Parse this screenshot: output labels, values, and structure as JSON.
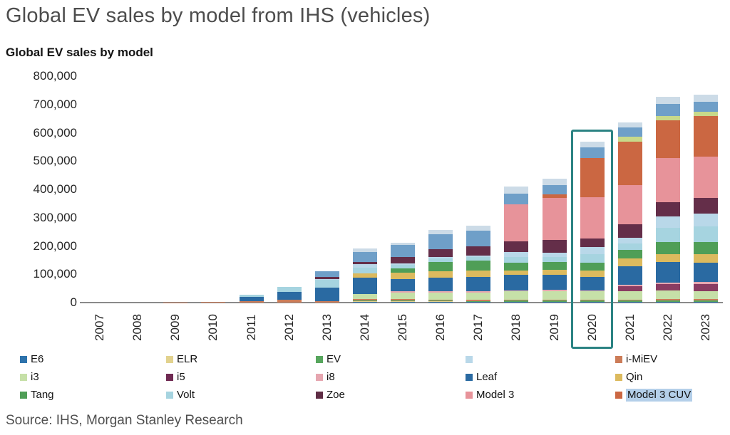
{
  "title": "Global EV sales by model from IHS (vehicles)",
  "source": "Source: IHS, Morgan Stanley Research",
  "legend_highlight_bg": "#b4cfe9",
  "legend_items": [
    {
      "label": "E6",
      "color": "#2e73ac",
      "highlighted": false
    },
    {
      "label": "ELR",
      "color": "#e2d28e",
      "highlighted": false
    },
    {
      "label": "EV",
      "color": "#57a65d",
      "highlighted": false
    },
    {
      "label": "",
      "color": "#b9d8e9",
      "highlighted": false
    },
    {
      "label": "i-MiEV",
      "color": "#cc7c58",
      "highlighted": false
    },
    {
      "label": "i3",
      "color": "#c6e0a8",
      "highlighted": false
    },
    {
      "label": "i5",
      "color": "#6f2a52",
      "highlighted": false
    },
    {
      "label": "i8",
      "color": "#e6a6b0",
      "highlighted": false
    },
    {
      "label": "Leaf",
      "color": "#2a6aa2",
      "highlighted": false
    },
    {
      "label": "Qin",
      "color": "#dcba5e",
      "highlighted": false
    },
    {
      "label": "Tang",
      "color": "#4f9e57",
      "highlighted": false
    },
    {
      "label": "Volt",
      "color": "#a6d4e0",
      "highlighted": false
    },
    {
      "label": "Zoe",
      "color": "#5f2d45",
      "highlighted": false
    },
    {
      "label": "Model 3",
      "color": "#e7939a",
      "highlighted": false
    },
    {
      "label": "Model 3 CUV",
      "color": "#cb6742",
      "highlighted": true
    }
  ],
  "chart_data": {
    "type": "bar",
    "stacked": true,
    "subtitle": "Global EV sales by model",
    "ylabel": "",
    "ylim": [
      0,
      800000
    ],
    "grid": false,
    "legend_position": "bottom",
    "highlight": {
      "year": "2020",
      "box_color": "#2b8383"
    },
    "y_ticks": [
      {
        "label": "800,000",
        "value": 800000
      },
      {
        "label": "700,000",
        "value": 700000
      },
      {
        "label": "600,000",
        "value": 600000
      },
      {
        "label": "500,000",
        "value": 500000
      },
      {
        "label": "400,000",
        "value": 400000
      },
      {
        "label": "300,000",
        "value": 300000
      },
      {
        "label": "200,000",
        "value": 200000
      },
      {
        "label": "100,000",
        "value": 100000
      },
      {
        "label": "0",
        "value": 0
      }
    ],
    "years": [
      "2007",
      "2008",
      "2009",
      "2010",
      "2011",
      "2012",
      "2013",
      "2014",
      "2015",
      "2016",
      "2017",
      "2018",
      "2019",
      "2020",
      "2021",
      "2022",
      "2023"
    ],
    "series": [
      {
        "name": "E6",
        "color": "#2e73ac",
        "values": [
          0,
          0,
          0,
          0,
          0,
          0,
          0,
          2000,
          3000,
          3000,
          3000,
          3000,
          3000,
          3000,
          3000,
          3000,
          3000
        ]
      },
      {
        "name": "ELR",
        "color": "#e2d28e",
        "values": [
          0,
          0,
          0,
          0,
          0,
          0,
          0,
          4000,
          2000,
          1000,
          0,
          0,
          0,
          0,
          0,
          0,
          0
        ]
      },
      {
        "name": "EV",
        "color": "#57a65d",
        "values": [
          0,
          0,
          0,
          0,
          0,
          0,
          0,
          2000,
          3000,
          3000,
          3000,
          4000,
          4000,
          4000,
          4000,
          5000,
          5000
        ]
      },
      {
        "name": "i-MiEV",
        "color": "#cc7c58",
        "values": [
          0,
          0,
          1000,
          3000,
          6000,
          10000,
          6000,
          5000,
          4000,
          3000,
          3000,
          4000,
          4000,
          4000,
          4000,
          4000,
          4000
        ]
      },
      {
        "name": "i3",
        "color": "#c6e0a8",
        "values": [
          0,
          0,
          0,
          0,
          0,
          0,
          0,
          16000,
          24000,
          25000,
          26000,
          28000,
          30000,
          28000,
          28000,
          30000,
          28000
        ]
      },
      {
        "name": "i5",
        "color": "#8a3c62",
        "values": [
          0,
          0,
          0,
          0,
          0,
          0,
          0,
          0,
          0,
          0,
          0,
          0,
          0,
          0,
          20000,
          24000,
          26000
        ]
      },
      {
        "name": "i8",
        "color": "#e6a6b0",
        "values": [
          0,
          0,
          0,
          0,
          0,
          0,
          0,
          0,
          4000,
          4000,
          4000,
          4000,
          5000,
          5000,
          5000,
          5000,
          6000
        ]
      },
      {
        "name": "Leaf",
        "color": "#2a6aa2",
        "values": [
          0,
          0,
          0,
          0,
          14000,
          27000,
          48000,
          58000,
          42000,
          50000,
          52000,
          55000,
          53000,
          46000,
          65000,
          72000,
          70000
        ]
      },
      {
        "name": "Qin",
        "color": "#dcba5e",
        "values": [
          0,
          0,
          0,
          0,
          0,
          0,
          0,
          16000,
          24000,
          22000,
          22000,
          16000,
          16000,
          22000,
          28000,
          28000,
          28000
        ]
      },
      {
        "name": "Tang",
        "color": "#4f9e57",
        "values": [
          0,
          0,
          0,
          0,
          0,
          0,
          0,
          0,
          14000,
          32000,
          35000,
          28000,
          28000,
          28000,
          28000,
          44000,
          44000
        ]
      },
      {
        "name": "Volt",
        "color": "#a6d4e0",
        "values": [
          0,
          0,
          0,
          0,
          8000,
          19000,
          26000,
          20000,
          14000,
          14000,
          13000,
          20000,
          18000,
          32000,
          25000,
          50000,
          55000
        ]
      },
      {
        "name": "",
        "color": "#b9d8e9",
        "values": [
          0,
          0,
          0,
          0,
          0,
          0,
          4000,
          12000,
          4000,
          4000,
          4000,
          16000,
          15000,
          23000,
          20000,
          40000,
          45000
        ]
      },
      {
        "name": "Zoe",
        "color": "#642e49",
        "values": [
          0,
          0,
          0,
          0,
          0,
          0,
          6000,
          8000,
          22000,
          28000,
          33000,
          38000,
          46000,
          32000,
          46000,
          50000,
          55000
        ]
      },
      {
        "name": "Model 3",
        "color": "#e7939a",
        "values": [
          0,
          0,
          0,
          0,
          0,
          0,
          0,
          0,
          0,
          0,
          0,
          130000,
          147000,
          146000,
          138000,
          155000,
          147000
        ]
      },
      {
        "name": "Model 3 CUV",
        "color": "#cb6742",
        "values": [
          0,
          0,
          0,
          0,
          0,
          0,
          0,
          0,
          0,
          0,
          0,
          0,
          13000,
          137000,
          155000,
          134000,
          143000
        ]
      },
      {
        "name": "",
        "color": "#c8d98a",
        "values": [
          0,
          0,
          0,
          0,
          0,
          0,
          0,
          0,
          0,
          0,
          0,
          0,
          0,
          0,
          17000,
          14000,
          14000
        ]
      },
      {
        "name": "",
        "color": "#6f9fc8",
        "values": [
          0,
          0,
          0,
          0,
          0,
          0,
          20000,
          35000,
          45000,
          52000,
          55000,
          38000,
          34000,
          38000,
          34000,
          44000,
          36000
        ]
      },
      {
        "name": "",
        "color": "#ccdbe7",
        "values": [
          0,
          0,
          0,
          0,
          0,
          0,
          0,
          12000,
          6000,
          15000,
          18000,
          25000,
          21000,
          21000,
          17000,
          25000,
          25000
        ]
      }
    ]
  }
}
